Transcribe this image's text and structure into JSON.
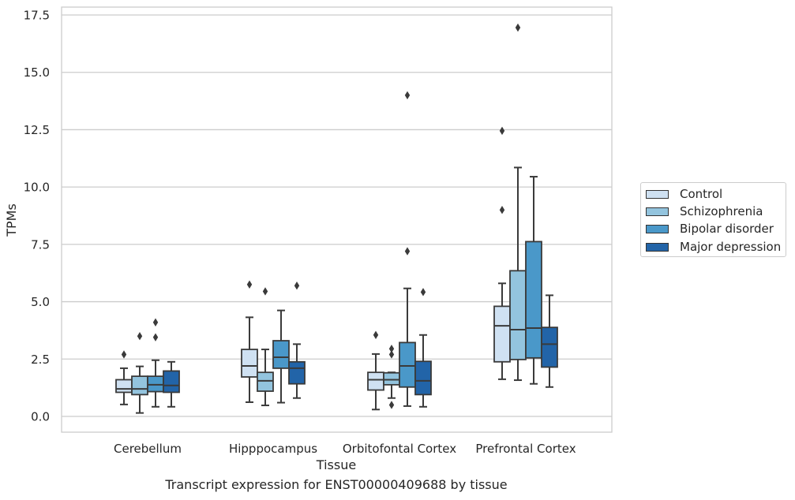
{
  "chart_data": {
    "type": "box",
    "ylabel": "TPMs",
    "xlabel": "Tissue",
    "caption": "Transcript expression for ENST00000409688 by tissue",
    "ylim": [
      -0.6,
      17.8
    ],
    "yticks": [
      "0.0",
      "2.5",
      "5.0",
      "7.5",
      "10.0",
      "12.5",
      "15.0",
      "17.5"
    ],
    "ytick_values": [
      0,
      2.5,
      5,
      7.5,
      10,
      12.5,
      15,
      17.5
    ],
    "grid": "horizontal",
    "legend_position": "right",
    "categories": [
      "Cerebellum",
      "Hipppocampus",
      "Orbitofontal Cortex",
      "Prefrontal Cortex"
    ],
    "series": [
      {
        "name": "Control",
        "color": "#cfe1f2",
        "boxes": [
          {
            "whislo": 0.52,
            "q1": 1.05,
            "med": 1.2,
            "q3": 1.6,
            "whishi": 2.1,
            "fliers": [
              2.7
            ]
          },
          {
            "whislo": 0.62,
            "q1": 1.72,
            "med": 2.2,
            "q3": 2.92,
            "whishi": 4.32,
            "fliers": [
              5.75
            ]
          },
          {
            "whislo": 0.3,
            "q1": 1.15,
            "med": 1.6,
            "q3": 1.92,
            "whishi": 2.72,
            "fliers": [
              3.55
            ]
          },
          {
            "whislo": 1.62,
            "q1": 2.38,
            "med": 3.95,
            "q3": 4.8,
            "whishi": 5.8,
            "fliers": [
              9.0,
              12.45
            ]
          }
        ]
      },
      {
        "name": "Schizophrenia",
        "color": "#93c4de",
        "boxes": [
          {
            "whislo": 0.15,
            "q1": 0.95,
            "med": 1.2,
            "q3": 1.75,
            "whishi": 2.18,
            "fliers": [
              3.5
            ]
          },
          {
            "whislo": 0.48,
            "q1": 1.1,
            "med": 1.55,
            "q3": 1.92,
            "whishi": 2.92,
            "fliers": [
              5.45
            ]
          },
          {
            "whislo": 0.8,
            "q1": 1.38,
            "med": 1.6,
            "q3": 1.9,
            "whishi": 1.92,
            "fliers": [
              2.95,
              2.7,
              0.5
            ]
          },
          {
            "whislo": 1.58,
            "q1": 2.48,
            "med": 3.78,
            "q3": 6.35,
            "whishi": 10.85,
            "fliers": [
              16.95
            ]
          }
        ]
      },
      {
        "name": "Bipolar disorder",
        "color": "#4a98c9",
        "boxes": [
          {
            "whislo": 0.42,
            "q1": 1.08,
            "med": 1.38,
            "q3": 1.75,
            "whishi": 2.45,
            "fliers": [
              3.45,
              4.1
            ]
          },
          {
            "whislo": 0.6,
            "q1": 2.1,
            "med": 2.58,
            "q3": 3.3,
            "whishi": 4.62,
            "fliers": []
          },
          {
            "whislo": 0.45,
            "q1": 1.28,
            "med": 2.2,
            "q3": 3.22,
            "whishi": 5.58,
            "fliers": [
              7.2,
              14.0
            ]
          },
          {
            "whislo": 1.42,
            "q1": 2.55,
            "med": 3.85,
            "q3": 7.62,
            "whishi": 10.45,
            "fliers": []
          }
        ]
      },
      {
        "name": "Major depression",
        "color": "#2264a8",
        "boxes": [
          {
            "whislo": 0.42,
            "q1": 1.05,
            "med": 1.35,
            "q3": 1.98,
            "whishi": 2.38,
            "fliers": []
          },
          {
            "whislo": 0.8,
            "q1": 1.42,
            "med": 2.1,
            "q3": 2.38,
            "whishi": 3.15,
            "fliers": [
              5.7
            ]
          },
          {
            "whislo": 0.42,
            "q1": 0.95,
            "med": 1.55,
            "q3": 2.4,
            "whishi": 3.55,
            "fliers": [
              5.42
            ]
          },
          {
            "whislo": 1.28,
            "q1": 2.15,
            "med": 3.15,
            "q3": 3.88,
            "whishi": 5.28,
            "fliers": []
          }
        ]
      }
    ]
  }
}
